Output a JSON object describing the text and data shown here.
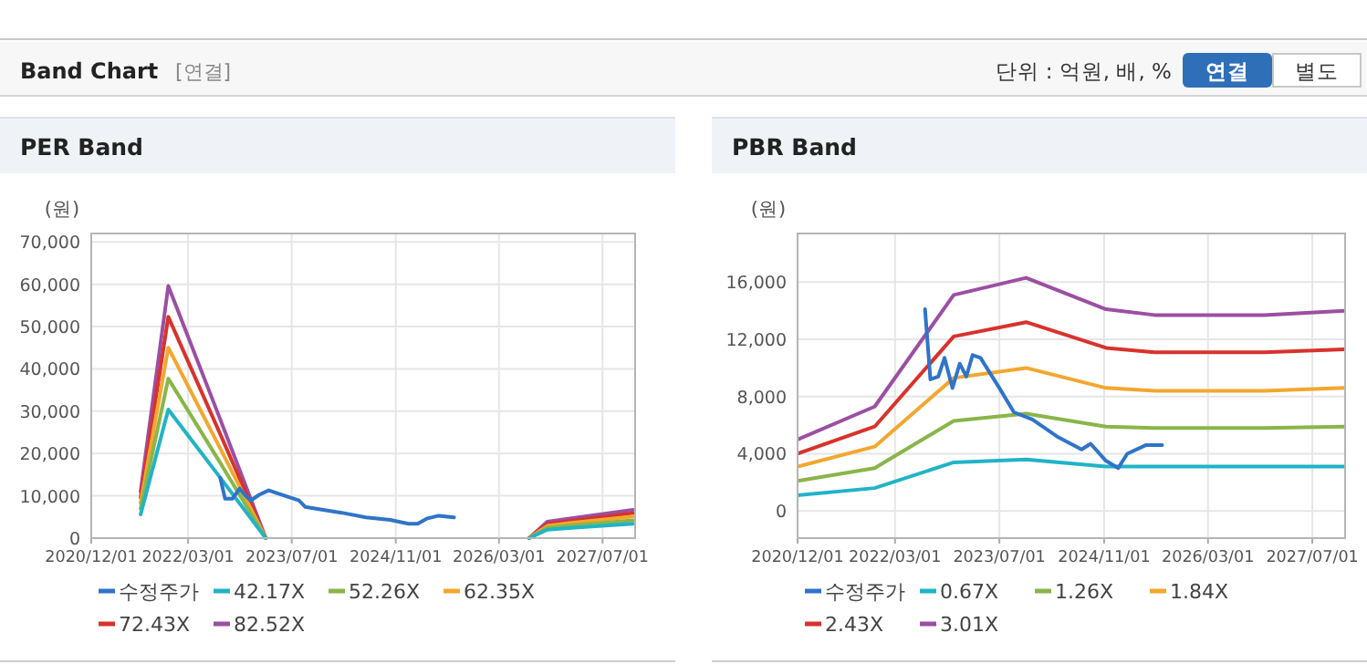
{
  "chart_data": [
    {
      "type": "line",
      "title": "PER Band",
      "ylabel": "(원)",
      "annotations": [
        "Band Chart",
        "[연결]",
        "단위 : 억원, 배, %",
        "연결",
        "별도"
      ],
      "xlim": [
        "2020-12-01",
        "2027-12-01"
      ],
      "xticks": [
        {
          "value": "2020-12-01",
          "label": "2020/12/01"
        },
        {
          "value": "2022-03-01",
          "label": "2022/03/01"
        },
        {
          "value": "2023-07-01",
          "label": "2023/07/01"
        },
        {
          "value": "2024-11-01",
          "label": "2024/11/01"
        },
        {
          "value": "2026-03-01",
          "label": "2026/03/01"
        },
        {
          "value": "2027-07-01",
          "label": "2027/07/01"
        }
      ],
      "ylim": [
        0,
        72000
      ],
      "yticks": [
        {
          "value": 0,
          "label": "0"
        },
        {
          "value": 10000,
          "label": "10,000"
        },
        {
          "value": 20000,
          "label": "20,000"
        },
        {
          "value": 30000,
          "label": "30,000"
        },
        {
          "value": 40000,
          "label": "40,000"
        },
        {
          "value": 50000,
          "label": "50,000"
        },
        {
          "value": 60000,
          "label": "60,000"
        },
        {
          "value": 70000,
          "label": "70,000"
        }
      ],
      "grid": true,
      "legend": "bottom",
      "marker": "none",
      "line_style": "solid",
      "series": [
        {
          "name": "수정주가",
          "color": "#2f74c9",
          "x": [
            "2022-07-30",
            "2022-08-22",
            "2022-09-25",
            "2022-10-29",
            "2022-11-21",
            "2022-12-20",
            "2023-01-31",
            "2023-03-15",
            "2023-05-11",
            "2023-08-04",
            "2023-09-02",
            "2023-11-26",
            "2024-02-21",
            "2024-06-14",
            "2024-10-06",
            "2024-12-31",
            "2025-02-12",
            "2025-03-26",
            "2025-05-22",
            "2025-08-02"
          ],
          "values": [
            14300,
            9300,
            9300,
            11700,
            10300,
            8900,
            10300,
            11300,
            10300,
            8900,
            7400,
            6700,
            6000,
            4900,
            4300,
            3400,
            3400,
            4600,
            5300,
            4900
          ]
        },
        {
          "name": "42.17X",
          "color": "#21b3c6",
          "x": [
            "2021-07-21",
            "2021-11-28",
            "2022-07-30",
            "2023-03-01",
            "2024-11-01",
            "2026-07-21",
            "2026-10-14",
            "2027-02-05",
            "2027-11-21"
          ],
          "values": [
            5600,
            30400,
            14300,
            0,
            null,
            0,
            2000,
            2400,
            3400
          ]
        },
        {
          "name": "52.26X",
          "color": "#8ab54a",
          "x": [
            "2021-07-21",
            "2021-11-28",
            "2022-07-30",
            "2023-03-01",
            "2024-11-01",
            "2026-07-21",
            "2026-10-14",
            "2027-02-05",
            "2027-11-21"
          ],
          "values": [
            7000,
            37700,
            17800,
            0,
            null,
            0,
            2400,
            3000,
            4200
          ]
        },
        {
          "name": "62.35X",
          "color": "#f2a72e",
          "x": [
            "2021-07-21",
            "2021-11-28",
            "2022-07-30",
            "2023-03-01",
            "2024-11-01",
            "2026-07-21",
            "2026-10-14",
            "2027-02-05",
            "2027-11-21"
          ],
          "values": [
            8300,
            45000,
            21200,
            0,
            null,
            0,
            2900,
            3600,
            5100
          ]
        },
        {
          "name": "72.43X",
          "color": "#d8322c",
          "x": [
            "2021-07-21",
            "2021-11-28",
            "2022-07-30",
            "2023-03-01",
            "2024-11-01",
            "2026-07-21",
            "2026-10-14",
            "2027-02-05",
            "2027-11-21"
          ],
          "values": [
            9600,
            52300,
            24600,
            0,
            null,
            0,
            3400,
            4100,
            5900
          ]
        },
        {
          "name": "82.52X",
          "color": "#9b4fa3",
          "x": [
            "2021-07-21",
            "2021-11-28",
            "2022-07-30",
            "2023-03-01",
            "2024-11-01",
            "2026-07-21",
            "2026-10-14",
            "2027-02-05",
            "2027-11-21"
          ],
          "values": [
            11000,
            59600,
            28100,
            0,
            null,
            0,
            3900,
            4700,
            6700
          ]
        }
      ]
    },
    {
      "type": "line",
      "title": "PBR Band",
      "ylabel": "(원)",
      "xlim": [
        "2020-12-01",
        "2027-12-01"
      ],
      "xticks": [
        {
          "value": "2020-12-01",
          "label": "2020/12/01"
        },
        {
          "value": "2022-03-01",
          "label": "2022/03/01"
        },
        {
          "value": "2023-07-01",
          "label": "2023/07/01"
        },
        {
          "value": "2024-11-01",
          "label": "2024/11/01"
        },
        {
          "value": "2026-03-01",
          "label": "2026/03/01"
        },
        {
          "value": "2027-07-01",
          "label": "2027/07/01"
        }
      ],
      "ylim": [
        -1900,
        19400
      ],
      "yticks": [
        {
          "value": 0,
          "label": "0"
        },
        {
          "value": 4000,
          "label": "4,000"
        },
        {
          "value": 8000,
          "label": "8,000"
        },
        {
          "value": 12000,
          "label": "12,000"
        },
        {
          "value": 16000,
          "label": "16,000"
        }
      ],
      "grid": true,
      "legend": "bottom",
      "marker": "none",
      "line_style": "solid",
      "series": [
        {
          "name": "수정주가",
          "color": "#2f74c9",
          "x": [
            "2022-07-19",
            "2022-08-13",
            "2022-09-19",
            "2022-10-18",
            "2022-11-24",
            "2022-12-28",
            "2023-01-28",
            "2023-02-26",
            "2023-04-04",
            "2023-07-01",
            "2023-09-07",
            "2023-12-02",
            "2024-03-27",
            "2024-07-19",
            "2024-08-30",
            "2024-11-10",
            "2025-01-06",
            "2025-02-17",
            "2025-05-14",
            "2025-07-30"
          ],
          "values": [
            14100,
            9200,
            9400,
            10700,
            8600,
            10300,
            9400,
            10900,
            10700,
            8600,
            6900,
            6400,
            5200,
            4300,
            4700,
            3500,
            3000,
            4000,
            4600,
            4600
          ]
        },
        {
          "name": "0.67X",
          "color": "#21b3c6",
          "x": [
            "2020-12-01",
            "2021-11-26",
            "2022-11-30",
            "2023-11-03",
            "2024-11-10",
            "2025-06-25",
            "2026-11-19",
            "2027-11-29"
          ],
          "values": [
            1100,
            1600,
            3400,
            3600,
            3100,
            3100,
            3100,
            3100
          ]
        },
        {
          "name": "1.26X",
          "color": "#8ab54a",
          "x": [
            "2020-12-01",
            "2021-11-26",
            "2022-11-30",
            "2023-11-03",
            "2024-11-10",
            "2025-06-25",
            "2026-11-19",
            "2027-11-29"
          ],
          "values": [
            2100,
            3000,
            6300,
            6800,
            5900,
            5800,
            5800,
            5900
          ]
        },
        {
          "name": "1.84X",
          "color": "#f2a72e",
          "x": [
            "2020-12-01",
            "2021-11-26",
            "2022-11-30",
            "2023-11-03",
            "2024-11-10",
            "2025-06-25",
            "2026-11-19",
            "2027-11-29"
          ],
          "values": [
            3100,
            4500,
            9300,
            10000,
            8600,
            8400,
            8400,
            8600
          ]
        },
        {
          "name": "2.43X",
          "color": "#d8322c",
          "x": [
            "2020-12-01",
            "2021-11-26",
            "2022-11-30",
            "2023-11-03",
            "2024-11-10",
            "2025-06-25",
            "2026-11-19",
            "2027-11-29"
          ],
          "values": [
            4000,
            5900,
            12200,
            13200,
            11400,
            11100,
            11100,
            11300
          ]
        },
        {
          "name": "3.01X",
          "color": "#9b4fa3",
          "x": [
            "2020-12-01",
            "2021-11-26",
            "2022-11-30",
            "2023-11-03",
            "2024-11-10",
            "2025-06-25",
            "2026-11-19",
            "2027-11-29"
          ],
          "values": [
            5000,
            7300,
            15100,
            16300,
            14100,
            13700,
            13700,
            14000
          ]
        }
      ]
    }
  ]
}
